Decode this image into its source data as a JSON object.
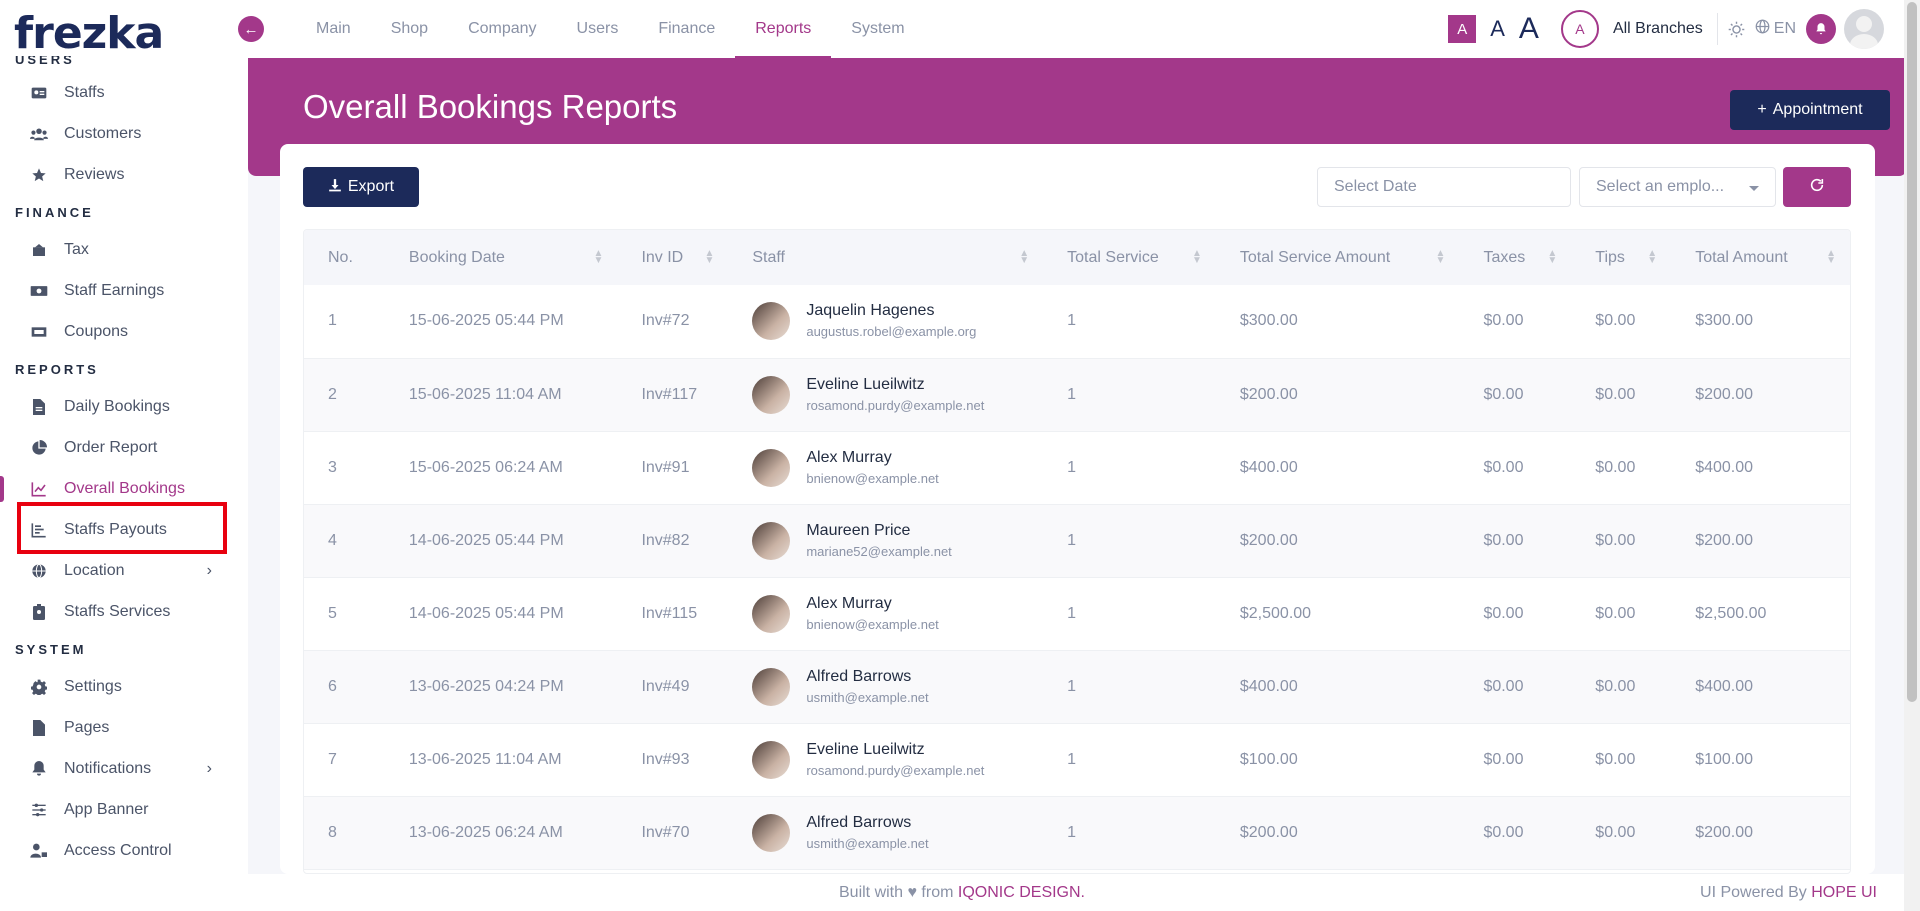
{
  "brand": {
    "name": "frezka",
    "accent": "#a3388a",
    "navy": "#1c2a5a"
  },
  "sidebar": {
    "sections": [
      {
        "title": "USERS",
        "items": [
          {
            "label": "Staffs",
            "icon": "id-card-icon"
          },
          {
            "label": "Customers",
            "icon": "users-icon"
          },
          {
            "label": "Reviews",
            "icon": "star-icon"
          }
        ]
      },
      {
        "title": "FINANCE",
        "items": [
          {
            "label": "Tax",
            "icon": "tax-icon"
          },
          {
            "label": "Staff Earnings",
            "icon": "money-icon"
          },
          {
            "label": "Coupons",
            "icon": "ticket-icon"
          }
        ]
      },
      {
        "title": "REPORTS",
        "items": [
          {
            "label": "Daily Bookings",
            "icon": "file-icon"
          },
          {
            "label": "Order Report",
            "icon": "pie-chart-icon"
          },
          {
            "label": "Overall Bookings",
            "icon": "line-chart-icon",
            "active": true
          },
          {
            "label": "Staffs Payouts",
            "icon": "bar-list-icon"
          },
          {
            "label": "Location",
            "icon": "globe-icon",
            "expandable": true
          },
          {
            "label": "Staffs Services",
            "icon": "badge-icon"
          }
        ]
      },
      {
        "title": "SYSTEM",
        "items": [
          {
            "label": "Settings",
            "icon": "gear-icon"
          },
          {
            "label": "Pages",
            "icon": "page-icon"
          },
          {
            "label": "Notifications",
            "icon": "bell-icon",
            "expandable": true
          },
          {
            "label": "App Banner",
            "icon": "sliders-icon"
          },
          {
            "label": "Access Control",
            "icon": "user-lock-icon"
          }
        ]
      }
    ]
  },
  "topnav": {
    "items": [
      "Main",
      "Shop",
      "Company",
      "Users",
      "Finance",
      "Reports",
      "System"
    ],
    "active": "Reports"
  },
  "topbar": {
    "font_small": "A",
    "font_medium": "A",
    "font_large": "A",
    "branch_initial": "A",
    "branch_label": "All Branches",
    "lang": "EN"
  },
  "page": {
    "title": "Overall Bookings Reports",
    "appointment_label": "Appointment",
    "export_label": "Export",
    "date_placeholder": "Select Date",
    "employee_placeholder": "Select an emplo..."
  },
  "table": {
    "columns": [
      "No.",
      "Booking Date",
      "Inv ID",
      "Staff",
      "Total Service",
      "Total Service Amount",
      "Taxes",
      "Tips",
      "Total Amount"
    ],
    "rows": [
      {
        "no": "1",
        "date": "15-06-2025 05:44 PM",
        "inv": "Inv#72",
        "name": "Jaquelin Hagenes",
        "email": "augustus.robel@example.org",
        "services": "1",
        "amount": "$300.00",
        "taxes": "$0.00",
        "tips": "$0.00",
        "total": "$300.00"
      },
      {
        "no": "2",
        "date": "15-06-2025 11:04 AM",
        "inv": "Inv#117",
        "name": "Eveline Lueilwitz",
        "email": "rosamond.purdy@example.net",
        "services": "1",
        "amount": "$200.00",
        "taxes": "$0.00",
        "tips": "$0.00",
        "total": "$200.00"
      },
      {
        "no": "3",
        "date": "15-06-2025 06:24 AM",
        "inv": "Inv#91",
        "name": "Alex Murray",
        "email": "bnienow@example.net",
        "services": "1",
        "amount": "$400.00",
        "taxes": "$0.00",
        "tips": "$0.00",
        "total": "$400.00"
      },
      {
        "no": "4",
        "date": "14-06-2025 05:44 PM",
        "inv": "Inv#82",
        "name": "Maureen Price",
        "email": "mariane52@example.net",
        "services": "1",
        "amount": "$200.00",
        "taxes": "$0.00",
        "tips": "$0.00",
        "total": "$200.00"
      },
      {
        "no": "5",
        "date": "14-06-2025 05:44 PM",
        "inv": "Inv#115",
        "name": "Alex Murray",
        "email": "bnienow@example.net",
        "services": "1",
        "amount": "$2,500.00",
        "taxes": "$0.00",
        "tips": "$0.00",
        "total": "$2,500.00"
      },
      {
        "no": "6",
        "date": "13-06-2025 04:24 PM",
        "inv": "Inv#49",
        "name": "Alfred Barrows",
        "email": "usmith@example.net",
        "services": "1",
        "amount": "$400.00",
        "taxes": "$0.00",
        "tips": "$0.00",
        "total": "$400.00"
      },
      {
        "no": "7",
        "date": "13-06-2025 11:04 AM",
        "inv": "Inv#93",
        "name": "Eveline Lueilwitz",
        "email": "rosamond.purdy@example.net",
        "services": "1",
        "amount": "$100.00",
        "taxes": "$0.00",
        "tips": "$0.00",
        "total": "$100.00"
      },
      {
        "no": "8",
        "date": "13-06-2025 06:24 AM",
        "inv": "Inv#70",
        "name": "Alfred Barrows",
        "email": "usmith@example.net",
        "services": "1",
        "amount": "$200.00",
        "taxes": "$0.00",
        "tips": "$0.00",
        "total": "$200.00"
      }
    ]
  },
  "footer": {
    "built_prefix": "Built with ♥ from",
    "built_brand": "IQONIC DESIGN.",
    "powered_prefix": "UI Powered By",
    "powered_brand": "HOPE UI"
  }
}
